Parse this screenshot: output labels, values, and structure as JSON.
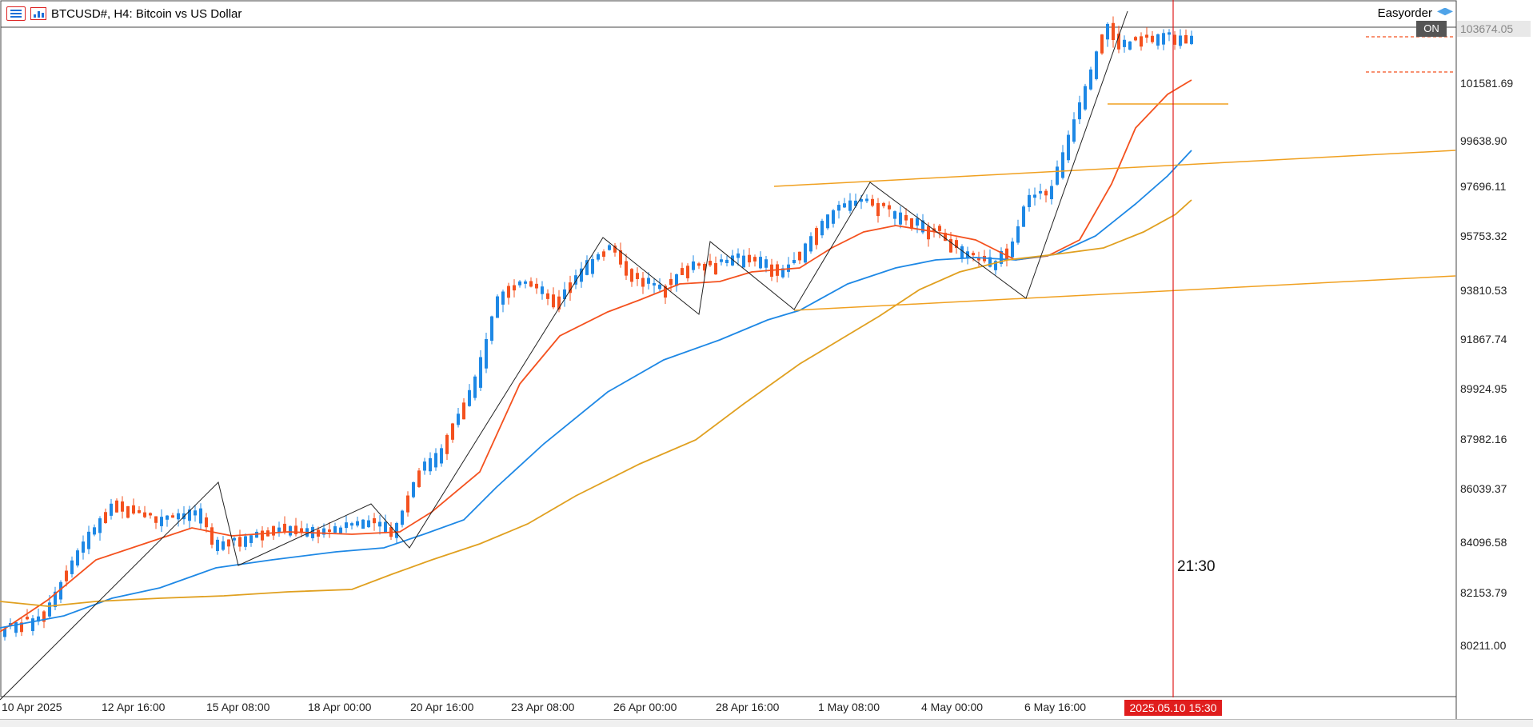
{
  "window": {
    "symbol_title": "BTCUSD#, H4:  Bitcoin vs US Dollar",
    "title_icon_1": "chart-window-icon",
    "title_icon_2": "bar-chart-icon",
    "ea_name": "Easyorder",
    "ea_icon": "graduation-cap-icon",
    "ea_status": "ON"
  },
  "price_axis": {
    "current_price": "103674.05",
    "labels": [
      "101581.69",
      "99638.90",
      "97696.11",
      "95753.32",
      "93810.53",
      "91867.74",
      "89924.95",
      "87982.16",
      "86039.37",
      "84096.58",
      "82153.79",
      "80211.00"
    ]
  },
  "time_axis": {
    "labels": [
      "10 Apr 2025",
      "12 Apr 16:00",
      "15 Apr 08:00",
      "18 Apr 00:00",
      "20 Apr 16:00",
      "23 Apr 08:00",
      "26 Apr 00:00",
      "28 Apr 16:00",
      "1 May 08:00",
      "4 May 00:00",
      "6 May 16:00"
    ],
    "cursor_time": "2025.05.10 15:30"
  },
  "countdown": "21:30",
  "colors": {
    "bull": "#1e88e5",
    "bear": "#f4511e",
    "ma_fast": "#f4511e",
    "ma_mid": "#1e88e5",
    "ma_slow": "#e0a020",
    "channel": "#f0a020",
    "cursor": "#e01d1d"
  }
}
